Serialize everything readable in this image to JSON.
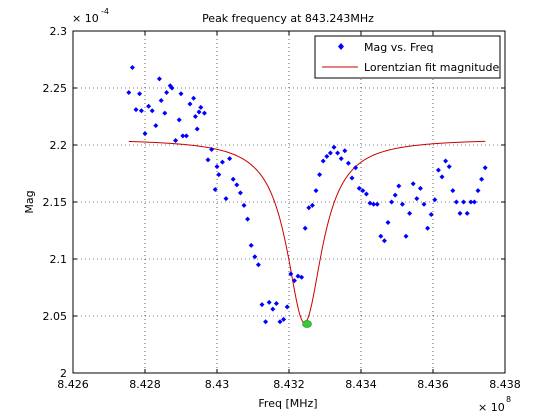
{
  "chart_data": {
    "type": "scatter",
    "title": "Peak frequency at 843.243MHz",
    "xlabel": "Freq [MHz]",
    "ylabel": "Mag",
    "x_multiplier": "× 10",
    "x_multiplier_exp": "8",
    "y_multiplier": "× 10",
    "y_multiplier_exp": "-4",
    "xlim": [
      842.6,
      843.8
    ],
    "ylim": [
      2.0,
      2.3
    ],
    "x_ticks": [
      842.6,
      842.8,
      843.0,
      843.2,
      843.4,
      843.6,
      843.8
    ],
    "x_tick_labels": [
      "8.426",
      "8.428",
      "8.43",
      "8.432",
      "8.434",
      "8.436",
      "8.438"
    ],
    "y_ticks": [
      2.0,
      2.05,
      2.1,
      2.15,
      2.2,
      2.25,
      2.3
    ],
    "y_tick_labels": [
      "2",
      "2.05",
      "2.1",
      "2.15",
      "2.2",
      "2.25",
      "2.3"
    ],
    "grid": true,
    "legend_position": "top-right",
    "series": [
      {
        "name": "Mag vs. Freq",
        "kind": "points",
        "color": "#0000ff",
        "x": [
          842.755,
          842.765,
          842.775,
          842.785,
          842.79,
          842.8,
          842.81,
          842.82,
          842.83,
          842.84,
          842.845,
          842.855,
          842.86,
          842.87,
          842.875,
          842.885,
          842.895,
          842.9,
          842.905,
          842.915,
          842.925,
          842.935,
          842.94,
          842.945,
          842.95,
          842.955,
          842.965,
          842.975,
          842.985,
          842.995,
          843.0,
          843.005,
          843.015,
          843.025,
          843.035,
          843.045,
          843.055,
          843.065,
          843.075,
          843.085,
          843.095,
          843.105,
          843.115,
          843.125,
          843.135,
          843.145,
          843.155,
          843.165,
          843.175,
          843.185,
          843.195,
          843.205,
          843.215,
          843.225,
          843.235,
          843.245,
          843.255,
          843.265,
          843.275,
          843.285,
          843.295,
          843.305,
          843.315,
          843.325,
          843.335,
          843.345,
          843.355,
          843.365,
          843.375,
          843.385,
          843.395,
          843.405,
          843.415,
          843.425,
          843.435,
          843.445,
          843.455,
          843.465,
          843.475,
          843.485,
          843.495,
          843.505,
          843.515,
          843.525,
          843.535,
          843.545,
          843.555,
          843.565,
          843.575,
          843.585,
          843.595,
          843.605,
          843.615,
          843.625,
          843.635,
          843.645,
          843.655,
          843.665,
          843.675,
          843.685,
          843.695,
          843.705,
          843.715,
          843.725,
          843.735,
          843.745
        ],
        "y": [
          2.246,
          2.268,
          2.231,
          2.245,
          2.23,
          2.21,
          2.234,
          2.23,
          2.217,
          2.258,
          2.239,
          2.228,
          2.246,
          2.252,
          2.25,
          2.204,
          2.222,
          2.245,
          2.208,
          2.208,
          2.236,
          2.241,
          2.225,
          2.214,
          2.229,
          2.233,
          2.228,
          2.187,
          2.196,
          2.161,
          2.181,
          2.174,
          2.185,
          2.153,
          2.188,
          2.17,
          2.165,
          2.158,
          2.147,
          2.135,
          2.112,
          2.102,
          2.095,
          2.06,
          2.045,
          2.062,
          2.056,
          2.061,
          2.045,
          2.047,
          2.058,
          2.087,
          2.081,
          2.085,
          2.084,
          2.127,
          2.145,
          2.147,
          2.16,
          2.174,
          2.186,
          2.19,
          2.193,
          2.198,
          2.193,
          2.188,
          2.195,
          2.184,
          2.171,
          2.18,
          2.162,
          2.16,
          2.157,
          2.149,
          2.148,
          2.148,
          2.12,
          2.116,
          2.132,
          2.15,
          2.156,
          2.164,
          2.148,
          2.12,
          2.14,
          2.166,
          2.153,
          2.162,
          2.148,
          2.127,
          2.139,
          2.152,
          2.178,
          2.172,
          2.186,
          2.181,
          2.16,
          2.15,
          2.14,
          2.15,
          2.14,
          2.15,
          2.15,
          2.16,
          2.17,
          2.18
        ]
      },
      {
        "name": "Lorentzian fit magnitude",
        "kind": "line",
        "color": "#cc0000",
        "center": 843.243,
        "baseline": 2.2055,
        "depth": 0.1615,
        "halfwidth": 0.06
      }
    ],
    "marker": {
      "x": 843.25,
      "y": 2.043,
      "color": "#33cc33"
    }
  }
}
